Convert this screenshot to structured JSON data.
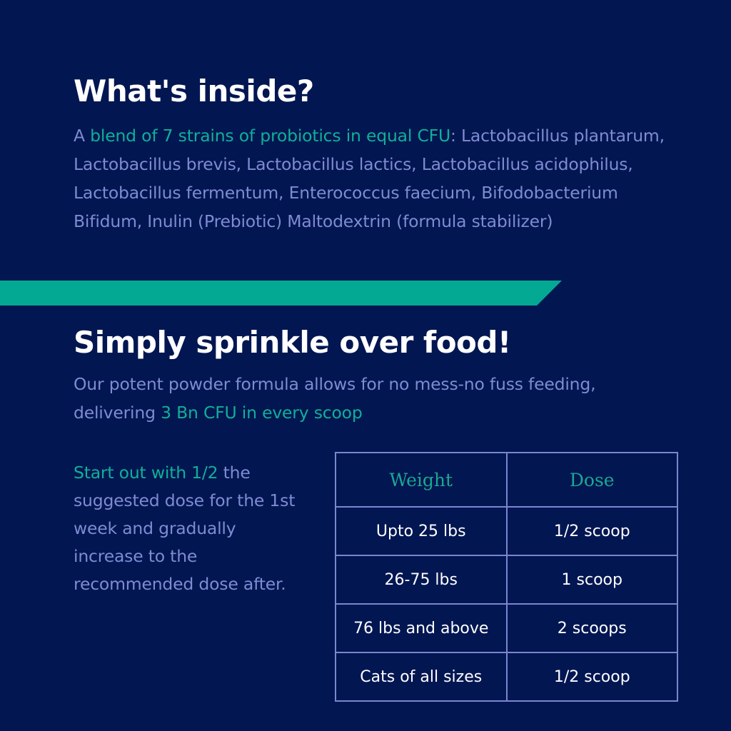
{
  "inside": {
    "title": "What's inside?",
    "lead": "A ",
    "highlight": "blend of 7 strains of  probiotics in equal CFU",
    "rest": ": Lactobacillus plantarum, Lactobacillus brevis, Lactobacillus lactics, Lactobacillus acidophilus, Lactobacillus fermentum, Enterococcus faecium, Bifodobacterium Bifidum, Inulin (Prebiotic) Maltodextrin (formula stabilizer)"
  },
  "sprinkle": {
    "title": "Simply sprinkle over food!",
    "text": "Our potent powder formula allows for no mess-no fuss feeding, delivering ",
    "highlight": "3 Bn CFU in every scoop"
  },
  "advice": {
    "highlight": "Start out with 1/2",
    "text": " the suggested dose for the 1st week and gradually increase to the recommended dose after."
  },
  "table": {
    "headers": [
      "Weight",
      "Dose"
    ],
    "rows": [
      [
        "Upto 25 lbs",
        "1/2 scoop"
      ],
      [
        "26-75 lbs",
        "1 scoop"
      ],
      [
        "76 lbs and above",
        "2 scoops"
      ],
      [
        "Cats of all sizes",
        "1/2 scoop"
      ]
    ]
  },
  "colors": {
    "background": "#021652",
    "accent": "#03a992",
    "body_text": "#7f8bd2",
    "border": "#7b86cf"
  }
}
